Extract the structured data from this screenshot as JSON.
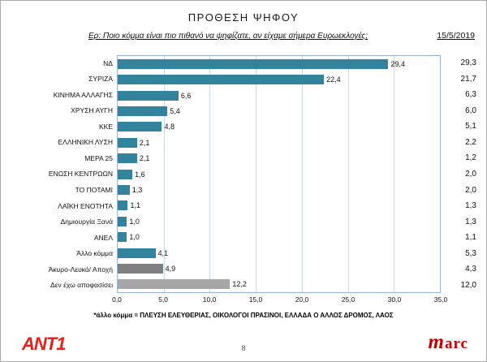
{
  "header": {
    "title": "ΠΡΟΘΕΣΗ ΨΗΦΟΥ",
    "question": "Ερ: Ποιο κόμμα είναι πιο πιθανό να ψηφίζατε, αν είχαμε σήμερα Ευρωεκλογές;",
    "date_column_header": "15/5/2019"
  },
  "chart_data": {
    "type": "bar",
    "orientation": "horizontal",
    "title": "ΠΡΟΘΕΣΗ ΨΗΦΟΥ",
    "xlim": [
      0,
      35
    ],
    "x_ticks": [
      "0,0",
      "5,0",
      "10,0",
      "15,0",
      "20,0",
      "25,0",
      "30,0",
      "35,0"
    ],
    "grid": true,
    "comparison_column_header": "15/5/2019",
    "colors": {
      "main": "#31849B",
      "invalid_gray": "#7F7F7F",
      "undecided_gray": "#A6A6A6"
    },
    "rows": [
      {
        "label": "ΝΔ",
        "value": 29.4,
        "value_label": "29,4",
        "previous": "29,3",
        "color": "main"
      },
      {
        "label": "ΣΥΡΙΖΑ",
        "value": 22.4,
        "value_label": "22,4",
        "previous": "21,7",
        "color": "main"
      },
      {
        "label": "ΚΙΝΗΜΑ ΑΛΛΑΓΗΣ",
        "value": 6.6,
        "value_label": "6,6",
        "previous": "6,3",
        "color": "main"
      },
      {
        "label": "ΧΡΥΣΗ ΑΥΓΗ",
        "value": 5.4,
        "value_label": "5,4",
        "previous": "6,0",
        "color": "main"
      },
      {
        "label": "ΚΚΕ",
        "value": 4.8,
        "value_label": "4,8",
        "previous": "5,1",
        "color": "main"
      },
      {
        "label": "ΕΛΛΗΝΙΚΗ ΛΥΣΗ",
        "value": 2.1,
        "value_label": "2,1",
        "previous": "2,2",
        "color": "main"
      },
      {
        "label": "ΜΕΡΑ 25",
        "value": 2.1,
        "value_label": "2,1",
        "previous": "1,2",
        "color": "main"
      },
      {
        "label": "ΕΝΩΣΗ ΚΕΝΤΡΩΩΝ",
        "value": 1.6,
        "value_label": "1,6",
        "previous": "2,0",
        "color": "main"
      },
      {
        "label": "ΤΟ ΠΟΤΑΜΙ",
        "value": 1.3,
        "value_label": "1,3",
        "previous": "2,0",
        "color": "main"
      },
      {
        "label": "ΛΑΪΚΗ ΕΝΟΤΗΤΑ",
        "value": 1.1,
        "value_label": "1,1",
        "previous": "1,3",
        "color": "main"
      },
      {
        "label": "Δημιουργία Ξανά",
        "value": 1.0,
        "value_label": "1,0",
        "previous": "1,3",
        "color": "main"
      },
      {
        "label": "ΑΝΕΛ",
        "value": 1.0,
        "value_label": "1,0",
        "previous": "1,1",
        "color": "main"
      },
      {
        "label": "Άλλο κόμμα",
        "value": 4.1,
        "value_label": "4,1",
        "previous": "5,3",
        "color": "main"
      },
      {
        "label": "Άκυρο-Λευκό/ Αποχή",
        "value": 4.9,
        "value_label": "4,9",
        "previous": "4,3",
        "color": "invalid_gray"
      },
      {
        "label": "Δεν έχω αποφασίσει",
        "value": 12.2,
        "value_label": "12,2",
        "previous": "12,0",
        "color": "undecided_gray"
      }
    ]
  },
  "footer": {
    "note": "*άλλο κόμμα = ΠΛΕΥΣΗ ΕΛΕΥΘΕΡΙΑΣ, ΟΙΚΟΛΟΓΟΙ ΠΡΑΣΙΝΟΙ, ΕΛΛΑΔΑ Ο ΑΛΛΟΣ ΔΡΟΜΟΣ, ΛΑΟΣ",
    "page_number": "8",
    "left_logo": "ANT1",
    "right_logo": "marc"
  }
}
